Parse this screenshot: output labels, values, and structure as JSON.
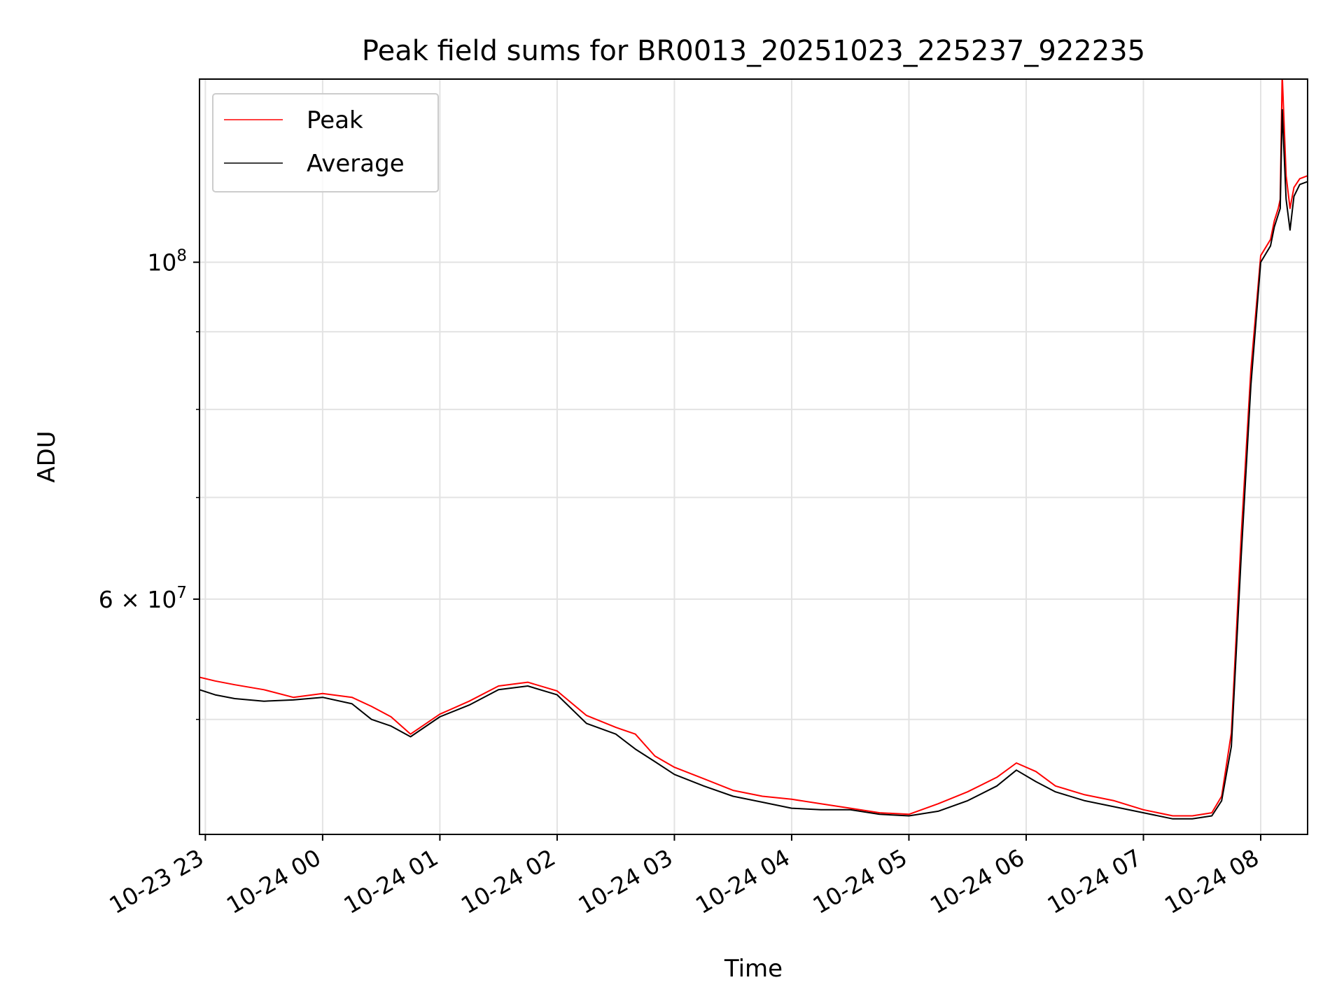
{
  "chart_data": {
    "type": "line",
    "title": "Peak field sums for BR0013_20251023_225237_922235",
    "xlabel": "Time",
    "ylabel": "ADU",
    "yscale": "log",
    "xlim": [
      "2025-10-23 22:57",
      "2025-10-24 08:24"
    ],
    "ylim": [
      42000000,
      132000000
    ],
    "grid": true,
    "legend_position": "upper left",
    "x_ticks": [
      {
        "t": "2025-10-23 23:00",
        "label": "10-23 23"
      },
      {
        "t": "2025-10-24 00:00",
        "label": "10-24 00"
      },
      {
        "t": "2025-10-24 01:00",
        "label": "10-24 01"
      },
      {
        "t": "2025-10-24 02:00",
        "label": "10-24 02"
      },
      {
        "t": "2025-10-24 03:00",
        "label": "10-24 03"
      },
      {
        "t": "2025-10-24 04:00",
        "label": "10-24 04"
      },
      {
        "t": "2025-10-24 05:00",
        "label": "10-24 05"
      },
      {
        "t": "2025-10-24 06:00",
        "label": "10-24 06"
      },
      {
        "t": "2025-10-24 07:00",
        "label": "10-24 07"
      },
      {
        "t": "2025-10-24 08:00",
        "label": "10-24 08"
      }
    ],
    "y_major_ticks": [
      {
        "value": 60000000,
        "mantissa": "6",
        "exponent": "7"
      },
      {
        "value": 100000000,
        "mantissa": "",
        "exponent": "8"
      }
    ],
    "y_minor_ticks": [
      50000000,
      70000000,
      80000000,
      90000000
    ],
    "series": [
      {
        "name": "Peak",
        "color": "#ff0000",
        "x": [
          "2025-10-23 22:57",
          "2025-10-23 23:05",
          "2025-10-23 23:15",
          "2025-10-23 23:30",
          "2025-10-23 23:45",
          "2025-10-24 00:00",
          "2025-10-24 00:15",
          "2025-10-24 00:25",
          "2025-10-24 00:35",
          "2025-10-24 00:45",
          "2025-10-24 01:00",
          "2025-10-24 01:15",
          "2025-10-24 01:30",
          "2025-10-24 01:45",
          "2025-10-24 02:00",
          "2025-10-24 02:15",
          "2025-10-24 02:30",
          "2025-10-24 02:40",
          "2025-10-24 02:50",
          "2025-10-24 03:00",
          "2025-10-24 03:15",
          "2025-10-24 03:30",
          "2025-10-24 03:45",
          "2025-10-24 04:00",
          "2025-10-24 04:15",
          "2025-10-24 04:30",
          "2025-10-24 04:45",
          "2025-10-24 05:00",
          "2025-10-24 05:15",
          "2025-10-24 05:30",
          "2025-10-24 05:45",
          "2025-10-24 05:55",
          "2025-10-24 06:05",
          "2025-10-24 06:15",
          "2025-10-24 06:30",
          "2025-10-24 06:45",
          "2025-10-24 07:00",
          "2025-10-24 07:15",
          "2025-10-24 07:25",
          "2025-10-24 07:35",
          "2025-10-24 07:40",
          "2025-10-24 07:45",
          "2025-10-24 07:50",
          "2025-10-24 07:55",
          "2025-10-24 08:00",
          "2025-10-24 08:05",
          "2025-10-24 08:07",
          "2025-10-24 08:09",
          "2025-10-24 08:10",
          "2025-10-24 08:11",
          "2025-10-24 08:13",
          "2025-10-24 08:15",
          "2025-10-24 08:17",
          "2025-10-24 08:20",
          "2025-10-24 08:24"
        ],
        "y": [
          53300000,
          53000000,
          52700000,
          52300000,
          51700000,
          52000000,
          51700000,
          51000000,
          50200000,
          48900000,
          50400000,
          51400000,
          52600000,
          52900000,
          52200000,
          50300000,
          49400000,
          48900000,
          47300000,
          46500000,
          45700000,
          44900000,
          44500000,
          44300000,
          44000000,
          43700000,
          43400000,
          43300000,
          44000000,
          44800000,
          45800000,
          46800000,
          46200000,
          45200000,
          44600000,
          44200000,
          43600000,
          43200000,
          43200000,
          43400000,
          44500000,
          49000000,
          66000000,
          85000000,
          101000000,
          103500000,
          106500000,
          108500000,
          110000000,
          133000000,
          114000000,
          108500000,
          112000000,
          113500000,
          114000000
        ]
      },
      {
        "name": "Average",
        "color": "#000000",
        "x": [
          "2025-10-23 22:57",
          "2025-10-23 23:05",
          "2025-10-23 23:15",
          "2025-10-23 23:30",
          "2025-10-23 23:45",
          "2025-10-24 00:00",
          "2025-10-24 00:15",
          "2025-10-24 00:25",
          "2025-10-24 00:35",
          "2025-10-24 00:45",
          "2025-10-24 01:00",
          "2025-10-24 01:15",
          "2025-10-24 01:30",
          "2025-10-24 01:45",
          "2025-10-24 02:00",
          "2025-10-24 02:15",
          "2025-10-24 02:30",
          "2025-10-24 02:40",
          "2025-10-24 02:50",
          "2025-10-24 03:00",
          "2025-10-24 03:15",
          "2025-10-24 03:30",
          "2025-10-24 03:45",
          "2025-10-24 04:00",
          "2025-10-24 04:15",
          "2025-10-24 04:30",
          "2025-10-24 04:45",
          "2025-10-24 05:00",
          "2025-10-24 05:15",
          "2025-10-24 05:30",
          "2025-10-24 05:45",
          "2025-10-24 05:55",
          "2025-10-24 06:05",
          "2025-10-24 06:15",
          "2025-10-24 06:30",
          "2025-10-24 06:45",
          "2025-10-24 07:00",
          "2025-10-24 07:15",
          "2025-10-24 07:25",
          "2025-10-24 07:35",
          "2025-10-24 07:40",
          "2025-10-24 07:45",
          "2025-10-24 07:50",
          "2025-10-24 07:55",
          "2025-10-24 08:00",
          "2025-10-24 08:05",
          "2025-10-24 08:07",
          "2025-10-24 08:09",
          "2025-10-24 08:10",
          "2025-10-24 08:11",
          "2025-10-24 08:13",
          "2025-10-24 08:15",
          "2025-10-24 08:17",
          "2025-10-24 08:20",
          "2025-10-24 08:24"
        ],
        "y": [
          52300000,
          51900000,
          51600000,
          51400000,
          51500000,
          51700000,
          51200000,
          50000000,
          49500000,
          48700000,
          50200000,
          51100000,
          52300000,
          52600000,
          51900000,
          49700000,
          48900000,
          47800000,
          46900000,
          46000000,
          45200000,
          44500000,
          44100000,
          43700000,
          43600000,
          43600000,
          43300000,
          43200000,
          43500000,
          44200000,
          45200000,
          46300000,
          45500000,
          44800000,
          44200000,
          43800000,
          43400000,
          43000000,
          43000000,
          43200000,
          44200000,
          48000000,
          64000000,
          83000000,
          100000000,
          102500000,
          105500000,
          107500000,
          108500000,
          126000000,
          110000000,
          105000000,
          110500000,
          112500000,
          113000000
        ]
      }
    ]
  }
}
